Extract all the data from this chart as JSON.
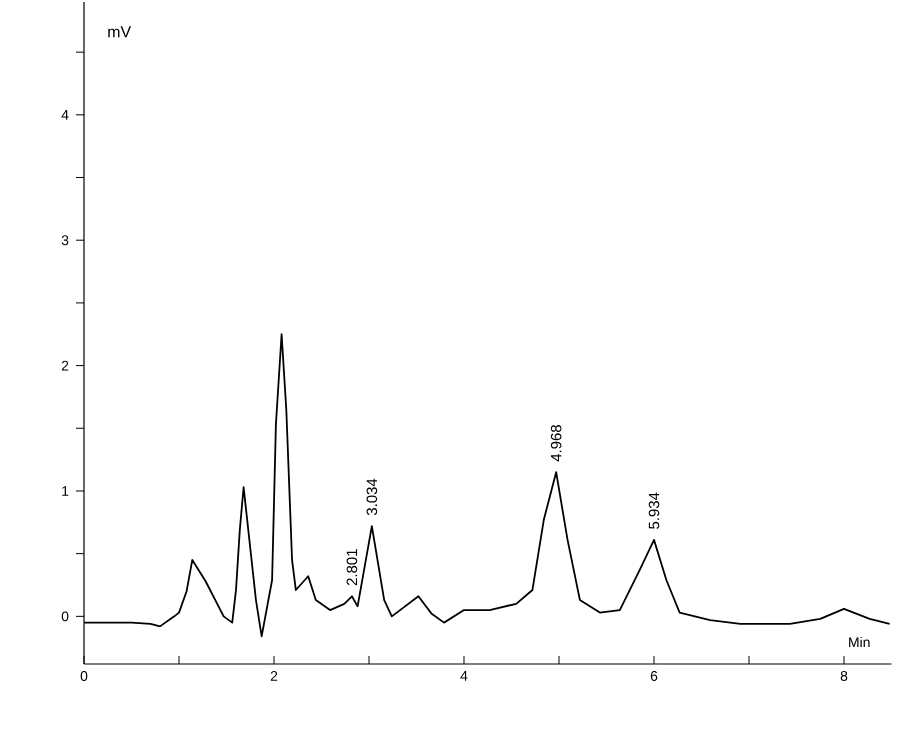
{
  "chart_data": {
    "type": "line",
    "xlabel": "Min",
    "ylabel": "mV",
    "xlim": [
      0,
      8.5
    ],
    "ylim": [
      -0.38,
      4.9
    ],
    "xticks": [
      0,
      {
        "value": 1,
        "label": null
      },
      2,
      {
        "value": 3,
        "label": null
      },
      4,
      {
        "value": 5,
        "label": null
      },
      6,
      {
        "value": 7,
        "label": null
      },
      8
    ],
    "yticks": [
      0,
      {
        "value": 0.5,
        "label": null
      },
      1,
      {
        "value": 1.5,
        "label": null
      },
      2,
      {
        "value": 2.5,
        "label": null
      },
      3,
      {
        "value": 3.5,
        "label": null
      },
      4,
      {
        "value": 4.5,
        "label": null
      }
    ],
    "grid": false,
    "marker": "none",
    "line_style": "solid",
    "series": [
      {
        "color": "#000000",
        "x": [
          0,
          0.5,
          0.7,
          0.8,
          0.95,
          1.0,
          1.08,
          1.14,
          1.28,
          1.47,
          1.56,
          1.6,
          1.64,
          1.68,
          1.81,
          1.87,
          1.98,
          2.02,
          2.08,
          2.13,
          2.19,
          2.23,
          2.36,
          2.44,
          2.59,
          2.74,
          2.82,
          2.88,
          3.03,
          3.16,
          3.24,
          3.52,
          3.66,
          3.79,
          4.0,
          4.27,
          4.55,
          4.72,
          4.84,
          4.97,
          5.09,
          5.22,
          5.43,
          5.64,
          5.85,
          6.0,
          6.13,
          6.27,
          6.59,
          6.91,
          7.43,
          7.75,
          8.0,
          8.27,
          8.48
        ],
        "values": [
          -0.05,
          -0.05,
          -0.06,
          -0.08,
          0.0,
          0.03,
          0.2,
          0.45,
          0.28,
          0.0,
          -0.05,
          0.21,
          0.69,
          1.03,
          0.13,
          -0.16,
          0.29,
          1.53,
          2.25,
          1.64,
          0.45,
          0.21,
          0.32,
          0.13,
          0.05,
          0.1,
          0.16,
          0.08,
          0.72,
          0.13,
          0.0,
          0.16,
          0.02,
          -0.05,
          0.05,
          0.05,
          0.1,
          0.21,
          0.77,
          1.15,
          0.61,
          0.13,
          0.03,
          0.05,
          0.37,
          0.61,
          0.29,
          0.03,
          -0.03,
          -0.06,
          -0.06,
          -0.02,
          0.06,
          -0.02,
          -0.06
        ]
      }
    ],
    "annotations": [
      {
        "text": "2.801",
        "x": 2.82,
        "y": 0.16
      },
      {
        "text": "3.034",
        "x": 3.03,
        "y": 0.72
      },
      {
        "text": "4.968",
        "x": 4.97,
        "y": 1.15
      },
      {
        "text": "5.934",
        "x": 6.0,
        "y": 0.61
      }
    ]
  }
}
